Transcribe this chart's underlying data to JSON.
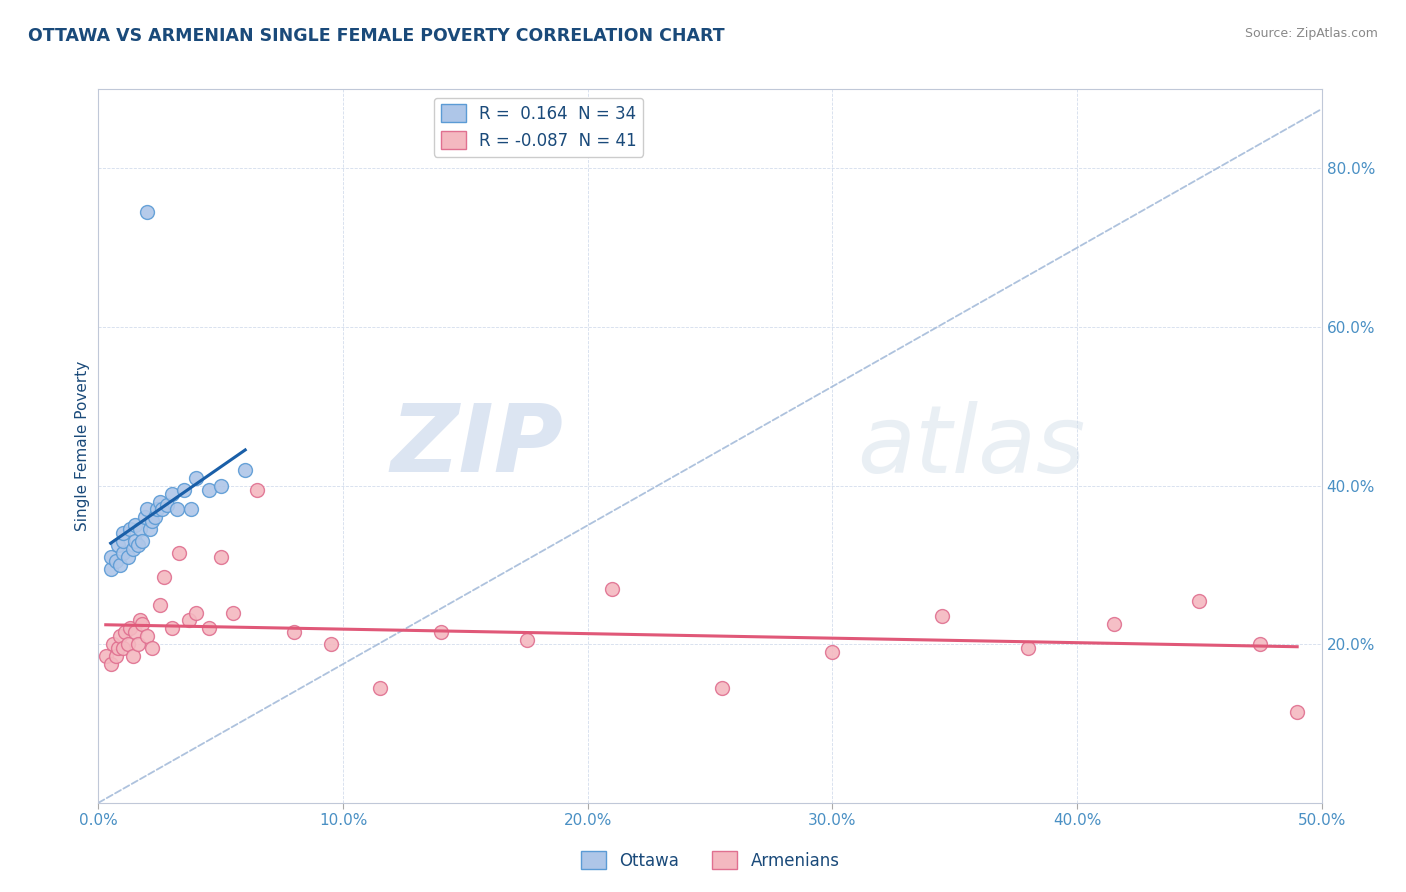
{
  "title": "OTTAWA VS ARMENIAN SINGLE FEMALE POVERTY CORRELATION CHART",
  "source_text": "Source: ZipAtlas.com",
  "ylabel": "Single Female Poverty",
  "xlim": [
    0.0,
    0.5
  ],
  "ylim": [
    0.0,
    0.9
  ],
  "xtick_labels": [
    "0.0%",
    "10.0%",
    "20.0%",
    "30.0%",
    "40.0%",
    "50.0%"
  ],
  "xtick_values": [
    0.0,
    0.1,
    0.2,
    0.3,
    0.4,
    0.5
  ],
  "ytick_labels": [
    "20.0%",
    "40.0%",
    "60.0%",
    "80.0%"
  ],
  "ytick_values": [
    0.2,
    0.4,
    0.6,
    0.8
  ],
  "ottawa_color": "#aec6e8",
  "armenian_color": "#f4b8c0",
  "ottawa_edge_color": "#5b9bd5",
  "armenian_edge_color": "#e07090",
  "ottawa_line_color": "#1a5fa8",
  "armenian_line_color": "#e05878",
  "dashed_line_color": "#a0b8d8",
  "legend_r_ottawa": "R =  0.164  N = 34",
  "legend_r_armenian": "R = -0.087  N = 41",
  "legend_labels": [
    "Ottawa",
    "Armenians"
  ],
  "watermark_zip": "ZIP",
  "watermark_atlas": "atlas",
  "title_color": "#1a4a7a",
  "axis_label_color": "#1a4a7a",
  "tick_label_color": "#4a90c4",
  "ottawa_x": [
    0.005,
    0.005,
    0.007,
    0.008,
    0.009,
    0.01,
    0.01,
    0.01,
    0.012,
    0.013,
    0.014,
    0.015,
    0.015,
    0.016,
    0.017,
    0.018,
    0.019,
    0.02,
    0.021,
    0.022,
    0.023,
    0.024,
    0.025,
    0.026,
    0.028,
    0.03,
    0.032,
    0.035,
    0.038,
    0.04,
    0.045,
    0.05,
    0.06,
    0.02
  ],
  "ottawa_y": [
    0.295,
    0.31,
    0.305,
    0.325,
    0.3,
    0.315,
    0.33,
    0.34,
    0.31,
    0.345,
    0.32,
    0.33,
    0.35,
    0.325,
    0.345,
    0.33,
    0.36,
    0.37,
    0.345,
    0.355,
    0.36,
    0.37,
    0.38,
    0.37,
    0.375,
    0.39,
    0.37,
    0.395,
    0.37,
    0.41,
    0.395,
    0.4,
    0.42,
    0.745
  ],
  "armenian_x": [
    0.003,
    0.005,
    0.006,
    0.007,
    0.008,
    0.009,
    0.01,
    0.011,
    0.012,
    0.013,
    0.014,
    0.015,
    0.016,
    0.017,
    0.018,
    0.02,
    0.022,
    0.025,
    0.027,
    0.03,
    0.033,
    0.037,
    0.04,
    0.045,
    0.05,
    0.055,
    0.065,
    0.08,
    0.095,
    0.115,
    0.14,
    0.175,
    0.21,
    0.255,
    0.3,
    0.345,
    0.38,
    0.415,
    0.45,
    0.475,
    0.49
  ],
  "armenian_y": [
    0.185,
    0.175,
    0.2,
    0.185,
    0.195,
    0.21,
    0.195,
    0.215,
    0.2,
    0.22,
    0.185,
    0.215,
    0.2,
    0.23,
    0.225,
    0.21,
    0.195,
    0.25,
    0.285,
    0.22,
    0.315,
    0.23,
    0.24,
    0.22,
    0.31,
    0.24,
    0.395,
    0.215,
    0.2,
    0.145,
    0.215,
    0.205,
    0.27,
    0.145,
    0.19,
    0.235,
    0.195,
    0.225,
    0.255,
    0.2,
    0.115
  ],
  "marker_size": 100
}
